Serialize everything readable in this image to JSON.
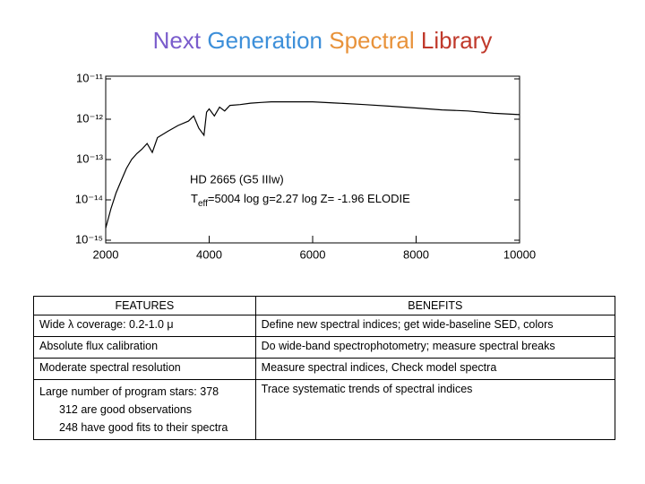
{
  "title_parts": [
    {
      "text": "Next",
      "color": "#7a5ccc"
    },
    {
      "text": "Generation",
      "color": "#3d8fd9"
    },
    {
      "text": "Spectral",
      "color": "#e8923a"
    },
    {
      "text": "Library",
      "color": "#c0392b"
    }
  ],
  "chart_data": {
    "type": "line",
    "log_y": true,
    "annotations": [
      "HD 2665  (G5 IIIw)",
      "T",
      "eff",
      "=5004   log g=2.27    log Z= -1.96   ELODIE"
    ],
    "x": [
      2000,
      2100,
      2200,
      2300,
      2400,
      2500,
      2600,
      2700,
      2800,
      2900,
      3000,
      3200,
      3400,
      3600,
      3700,
      3800,
      3900,
      3950,
      4000,
      4100,
      4200,
      4300,
      4400,
      4600,
      4800,
      5000,
      5200,
      5500,
      6000,
      6500,
      7000,
      7500,
      8000,
      8500,
      9000,
      9500,
      10000
    ],
    "series": [
      {
        "color": "#000000",
        "values": [
          2e-15,
          6e-15,
          1.5e-14,
          3e-14,
          6e-14,
          1e-13,
          1.4e-13,
          1.8e-13,
          2.5e-13,
          1.5e-13,
          3.5e-13,
          5e-13,
          7e-13,
          9e-13,
          1.2e-12,
          6e-13,
          4e-13,
          1.5e-12,
          1.8e-12,
          1.2e-12,
          2e-12,
          1.6e-12,
          2.2e-12,
          2.3e-12,
          2.5e-12,
          2.6e-12,
          2.7e-12,
          2.7e-12,
          2.7e-12,
          2.5e-12,
          2.3e-12,
          2.1e-12,
          1.9e-12,
          1.7e-12,
          1.6e-12,
          1.4e-12,
          1.3e-12
        ]
      }
    ],
    "xlim": [
      2000,
      10000
    ],
    "xticks": [
      2000,
      4000,
      6000,
      8000,
      10000
    ],
    "ylim": [
      1e-15,
      1e-11
    ],
    "yticks": [
      {
        "value": 1e-15,
        "label": "10⁻¹⁵"
      },
      {
        "value": 1e-14,
        "label": "10⁻¹⁴"
      },
      {
        "value": 1e-13,
        "label": "10⁻¹³"
      },
      {
        "value": 1e-12,
        "label": "10⁻¹²"
      },
      {
        "value": 1e-11,
        "label": "10⁻¹¹"
      }
    ]
  },
  "table": {
    "header": [
      "FEATURES",
      "BENEFITS"
    ],
    "rows": [
      [
        "Wide λ coverage: 0.2-1.0 μ",
        "Define new spectral indices; get wide-baseline SED, colors"
      ],
      [
        "Absolute flux calibration",
        "Do wide-band spectrophotometry; measure spectral breaks"
      ],
      [
        "Moderate spectral resolution",
        "Measure spectral indices, Check model spectra"
      ],
      [
        [
          "Large number of program stars: 378",
          "312 are good observations",
          "248 have good fits to their spectra"
        ],
        "Trace systematic trends of spectral indices"
      ]
    ]
  }
}
